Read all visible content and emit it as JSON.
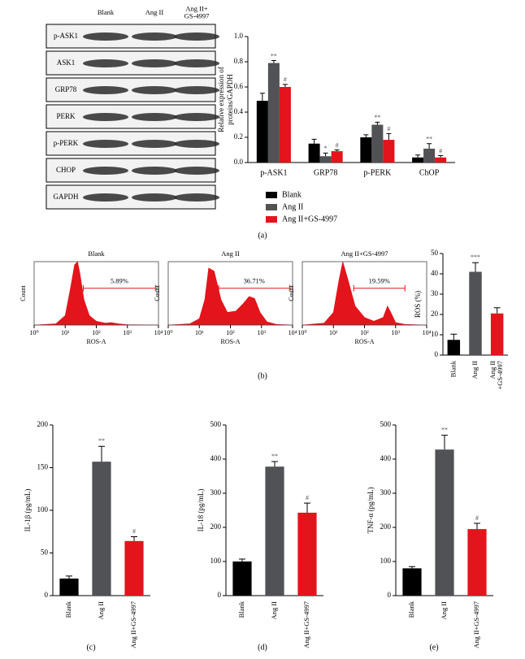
{
  "panels": [
    "(a)",
    "(b)",
    "(c)",
    "(d)",
    "(e)"
  ],
  "blot": {
    "lanes": [
      "Blank",
      "Ang II",
      "Ang II+GS-4997"
    ],
    "rows": [
      "p-ASK1",
      "ASK1",
      "GRP78",
      "PERK",
      "p-PERK",
      "CHOP",
      "GAPDH"
    ]
  },
  "chart_data": [
    {
      "type": "bar",
      "categories": [
        "p-ASK1",
        "GRP78",
        "p-PERK",
        "ChOP"
      ],
      "ylabel": [
        "Relative expression of",
        "proteins/GAPDH"
      ],
      "ylim": [
        0,
        1.0
      ],
      "yticks": [
        {
          "value": 0,
          "label": "0.0"
        },
        0.2,
        0.4,
        0.6,
        0.8,
        {
          "value": 1,
          "label": "1.0"
        }
      ],
      "legend": "bottom",
      "series": [
        {
          "name": "Blank",
          "color": "#000000",
          "values": [
            0.49,
            0.15,
            0.2,
            0.04
          ],
          "errors": [
            0.06,
            0.035,
            0.02,
            0.02
          ]
        },
        {
          "name": "Ang II",
          "color": "#505256",
          "values": [
            0.79,
            0.05,
            0.3,
            0.11
          ],
          "errors": [
            0.02,
            0.025,
            0.02,
            0.04
          ],
          "labels": [
            "**",
            "*",
            "**",
            "**"
          ]
        },
        {
          "name": "Ang II+GS-4997",
          "color": "#e3141b",
          "values": [
            0.6,
            0.09,
            0.18,
            0.04
          ],
          "errors": [
            0.02,
            0.01,
            0.05,
            0.015
          ],
          "labels": [
            "#",
            "#",
            "#",
            "#"
          ]
        }
      ]
    },
    {
      "type": "line",
      "title": "Blank",
      "xlabel": "ROS-A",
      "ylabel": "Count",
      "log_x": true,
      "color": "#e3141b",
      "xlim": [
        1,
        10000
      ],
      "xticks": [
        {
          "value": 1,
          "label": "10⁰"
        },
        {
          "value": 10,
          "label": "10¹"
        },
        {
          "value": 100,
          "label": "10²"
        },
        {
          "value": 1000,
          "label": "10³"
        },
        {
          "value": 10000,
          "label": "10⁴"
        }
      ],
      "ylim": [
        0,
        100
      ],
      "x": [
        1,
        5,
        10,
        15,
        20,
        25,
        30,
        40,
        60,
        100,
        200,
        300,
        500,
        1000,
        10000
      ],
      "values": [
        0,
        2,
        15,
        60,
        95,
        100,
        80,
        40,
        15,
        6,
        3,
        4,
        2,
        0.5,
        0
      ],
      "gate": [
        38,
        8000
      ],
      "gate_label": "5.89%"
    },
    {
      "type": "line",
      "title": "Ang II",
      "xlabel": "ROS-A",
      "ylabel": "Count",
      "log_x": true,
      "color": "#e3141b",
      "xlim": [
        1,
        10000
      ],
      "xticks": [
        {
          "value": 1,
          "label": "10⁰"
        },
        {
          "value": 10,
          "label": "10¹"
        },
        {
          "value": 100,
          "label": "10²"
        },
        {
          "value": 1000,
          "label": "10³"
        },
        {
          "value": 10000,
          "label": "10⁴"
        }
      ],
      "ylim": [
        0,
        100
      ],
      "x": [
        1,
        5,
        10,
        15,
        20,
        30,
        50,
        80,
        150,
        250,
        400,
        600,
        900,
        1500,
        3000,
        10000
      ],
      "values": [
        0,
        2,
        10,
        40,
        90,
        85,
        40,
        20,
        22,
        33,
        45,
        42,
        20,
        5,
        1,
        0
      ],
      "gate": [
        42,
        8000
      ],
      "gate_label": "36.71%"
    },
    {
      "type": "line",
      "title": "Ang II+GS-4997",
      "xlabel": "ROS-A",
      "ylabel": "Count",
      "log_x": true,
      "color": "#e3141b",
      "xlim": [
        1,
        10000
      ],
      "xticks": [
        {
          "value": 1,
          "label": "10⁰"
        },
        {
          "value": 10,
          "label": "10¹"
        },
        {
          "value": 100,
          "label": "10²"
        },
        {
          "value": 1000,
          "label": "10³"
        },
        {
          "value": 10000,
          "label": "10⁴"
        }
      ],
      "ylim": [
        0,
        100
      ],
      "x": [
        1,
        5,
        10,
        15,
        20,
        30,
        50,
        100,
        200,
        400,
        550,
        700,
        1000,
        2000,
        10000
      ],
      "values": [
        0,
        3,
        20,
        70,
        100,
        70,
        30,
        12,
        6,
        12,
        30,
        20,
        4,
        1,
        0
      ],
      "gate": [
        45,
        2000
      ],
      "gate_label": "19.59%"
    },
    {
      "type": "bar",
      "categories": [
        "Blank",
        "Ang II",
        "Ang II+GS-4997"
      ],
      "ylabel": "ROS (%)",
      "ylim": [
        0,
        50
      ],
      "yticks": [
        0,
        10,
        20,
        30,
        40,
        50
      ],
      "values": [
        7.5,
        41,
        20.5
      ],
      "errors": [
        2.8,
        4.5,
        2.8
      ],
      "colors": [
        "#000000",
        "#505256",
        "#e3141b"
      ],
      "labels": [
        null,
        "***",
        null
      ]
    },
    {
      "type": "bar",
      "categories": [
        "Blank",
        "Ang II",
        "Ang II+GS-4997"
      ],
      "ylabel": "IL-1β (pg/mL)",
      "ylim": [
        0,
        200
      ],
      "yticks": [
        0,
        50,
        100,
        150,
        200
      ],
      "values": [
        20,
        157,
        64
      ],
      "errors": [
        3,
        18,
        5
      ],
      "colors": [
        "#000000",
        "#505256",
        "#e3141b"
      ],
      "labels": [
        null,
        "**",
        "#"
      ]
    },
    {
      "type": "bar",
      "categories": [
        "Blank",
        "Ang II",
        "Ang II+GS-4997"
      ],
      "ylabel": "IL-18 (pg/mL)",
      "ylim": [
        0,
        500
      ],
      "yticks": [
        0,
        100,
        200,
        300,
        400,
        500
      ],
      "values": [
        100,
        378,
        243
      ],
      "errors": [
        7,
        15,
        28
      ],
      "colors": [
        "#000000",
        "#505256",
        "#e3141b"
      ],
      "labels": [
        null,
        "**",
        "#"
      ]
    },
    {
      "type": "bar",
      "categories": [
        "Blank",
        "Ang II",
        "Ang II+GS-4997"
      ],
      "ylabel": "TNF-α (pg/mL)",
      "ylim": [
        0,
        500
      ],
      "yticks": [
        0,
        100,
        200,
        300,
        400,
        500
      ],
      "values": [
        80,
        428,
        195
      ],
      "errors": [
        5,
        42,
        17
      ],
      "colors": [
        "#000000",
        "#505256",
        "#e3141b"
      ],
      "labels": [
        null,
        "**",
        "#"
      ]
    }
  ]
}
